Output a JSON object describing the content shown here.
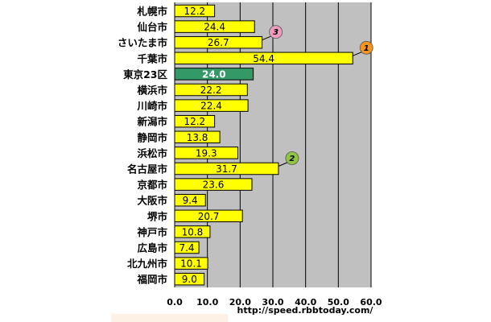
{
  "chart_data": {
    "type": "bar",
    "orientation": "horizontal",
    "categories": [
      "札幌市",
      "仙台市",
      "さいたま市",
      "千葉市",
      "東京23区",
      "横浜市",
      "川崎市",
      "新潟市",
      "静岡市",
      "浜松市",
      "名古屋市",
      "京都市",
      "大阪市",
      "堺市",
      "神戸市",
      "広島市",
      "北九州市",
      "福岡市"
    ],
    "values": [
      12.2,
      24.4,
      26.7,
      54.4,
      24.0,
      22.2,
      22.4,
      12.2,
      13.8,
      19.3,
      31.7,
      23.6,
      9.4,
      20.7,
      10.8,
      7.4,
      10.1,
      9.0
    ],
    "value_labels": [
      "12.2",
      "24.4",
      "26.7",
      "54.4",
      "24.0",
      "22.2",
      "22.4",
      "12.2",
      "13.8",
      "19.3",
      "31.7",
      "23.6",
      "9.4",
      "20.7",
      "10.8",
      "7.4",
      "10.1",
      "9.0"
    ],
    "highlight_index": 4,
    "xlim": [
      0,
      60
    ],
    "x_ticks": [
      "0.0",
      "10.0",
      "20.0",
      "30.0",
      "40.0",
      "50.0",
      "60.0"
    ],
    "grid": true,
    "rank_markers": [
      {
        "rank": "1",
        "category_index": 3,
        "color": "#f7941d"
      },
      {
        "rank": "2",
        "category_index": 10,
        "color": "#8dc63f"
      },
      {
        "rank": "3",
        "category_index": 2,
        "color": "#f49ac1"
      }
    ],
    "colors": {
      "bar": "#ffff00",
      "bar_highlight": "#339966",
      "plot_background": "#c0c0c0",
      "grid": "#000000"
    }
  },
  "footer": {
    "source": "http://speed.rbbtoday.com/"
  }
}
